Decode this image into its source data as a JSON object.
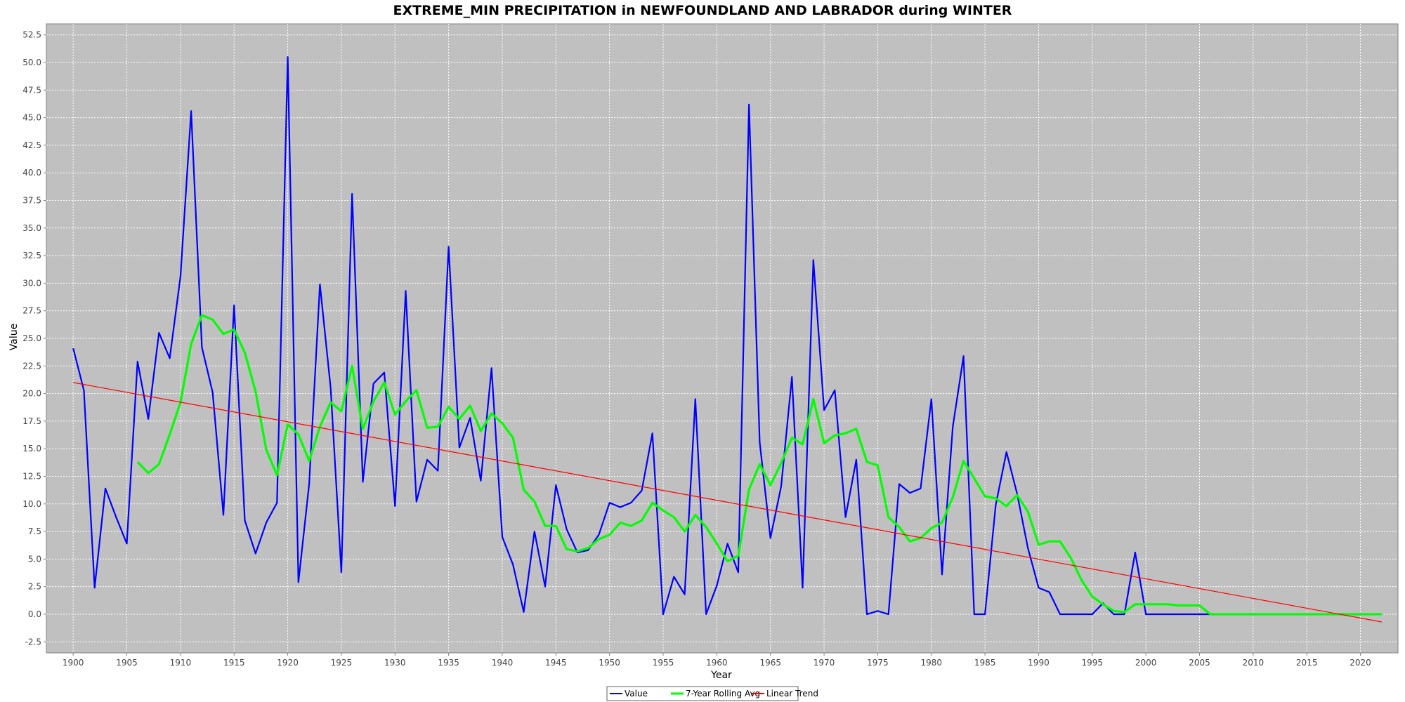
{
  "chart_data": {
    "type": "line",
    "title": "EXTREME_MIN PRECIPITATION in NEWFOUNDLAND AND LABRADOR during WINTER",
    "xlabel": "Year",
    "ylabel": "Value",
    "xlim": [
      1897.5,
      2023.5
    ],
    "ylim": [
      -3.5,
      53.5
    ],
    "x_ticks": [
      1900,
      1905,
      1910,
      1915,
      1920,
      1925,
      1930,
      1935,
      1940,
      1945,
      1950,
      1955,
      1960,
      1965,
      1970,
      1975,
      1980,
      1985,
      1990,
      1995,
      2000,
      2005,
      2010,
      2015,
      2020
    ],
    "y_ticks": [
      -2.5,
      0,
      2.5,
      5,
      7.5,
      10,
      12.5,
      15,
      17.5,
      20,
      22.5,
      25,
      27.5,
      30,
      32.5,
      35,
      37.5,
      40,
      42.5,
      45,
      47.5,
      50,
      52.5
    ],
    "grid": true,
    "legend_position": "bottom",
    "series": [
      {
        "name": "Value",
        "color": "#0000ff",
        "x": [
          1900,
          1901,
          1902,
          1903,
          1904,
          1905,
          1906,
          1907,
          1908,
          1909,
          1910,
          1911,
          1912,
          1913,
          1914,
          1915,
          1916,
          1917,
          1918,
          1919,
          1920,
          1921,
          1922,
          1923,
          1924,
          1925,
          1926,
          1927,
          1928,
          1929,
          1930,
          1931,
          1932,
          1933,
          1934,
          1935,
          1936,
          1937,
          1938,
          1939,
          1940,
          1941,
          1942,
          1943,
          1944,
          1945,
          1946,
          1947,
          1948,
          1949,
          1950,
          1951,
          1952,
          1953,
          1954,
          1955,
          1956,
          1957,
          1958,
          1959,
          1960,
          1961,
          1962,
          1963,
          1964,
          1965,
          1966,
          1967,
          1968,
          1969,
          1970,
          1971,
          1972,
          1973,
          1974,
          1975,
          1976,
          1977,
          1978,
          1979,
          1980,
          1981,
          1982,
          1983,
          1984,
          1985,
          1986,
          1987,
          1988,
          1989,
          1990,
          1991,
          1992,
          1993,
          1994,
          1995,
          1996,
          1997,
          1998,
          1999,
          2000,
          2001,
          2002,
          2003,
          2004,
          2005,
          2006,
          2007,
          2008,
          2009,
          2010,
          2011,
          2012,
          2013,
          2014,
          2015,
          2016,
          2017,
          2018,
          2019,
          2020,
          2021,
          2022
        ],
        "values": [
          24.1,
          20.3,
          2.4,
          11.4,
          8.8,
          6.4,
          22.9,
          17.7,
          25.5,
          23.2,
          30.6,
          45.6,
          24.2,
          20.1,
          9.0,
          28.0,
          8.5,
          5.5,
          8.3,
          10.1,
          50.5,
          2.9,
          11.8,
          29.9,
          20.5,
          3.8,
          38.1,
          12.0,
          20.9,
          21.9,
          9.8,
          29.3,
          10.2,
          14.0,
          13.0,
          33.3,
          15.1,
          17.8,
          12.1,
          22.3,
          7.0,
          4.5,
          0.2,
          7.5,
          2.5,
          11.7,
          7.7,
          5.6,
          5.8,
          7.2,
          10.1,
          9.7,
          10.1,
          11.2,
          16.4,
          0.0,
          3.4,
          1.8,
          19.5,
          0.0,
          2.6,
          6.4,
          3.8,
          46.2,
          15.6,
          6.9,
          11.6,
          21.5,
          2.4,
          32.1,
          18.5,
          20.3,
          8.8,
          14.0,
          0.0,
          0.3,
          0.0,
          11.8,
          11.0,
          11.4,
          19.5,
          3.6,
          17.0,
          23.4,
          0.0,
          0.0,
          9.9,
          14.7,
          10.9,
          6.0,
          2.4,
          2.0,
          0.0,
          0.0,
          0.0,
          0.0,
          1.0,
          0.0,
          0.0,
          5.6,
          0.0,
          0.0,
          0.0,
          0.0,
          0.0,
          0.0,
          0.0,
          0.0,
          0.0,
          0.0,
          0.0,
          0.0,
          0.0,
          0.0,
          0.0,
          0.0,
          0.0,
          0.0,
          0.0,
          0.0,
          0.0,
          0.0,
          0.0
        ]
      },
      {
        "name": "7-Year Rolling Avg",
        "color": "#00ff00",
        "x": [
          1906,
          1907,
          1908,
          1909,
          1910,
          1911,
          1912,
          1913,
          1914,
          1915,
          1916,
          1917,
          1918,
          1919,
          1920,
          1921,
          1922,
          1923,
          1924,
          1925,
          1926,
          1927,
          1928,
          1929,
          1930,
          1931,
          1932,
          1933,
          1934,
          1935,
          1936,
          1937,
          1938,
          1939,
          1940,
          1941,
          1942,
          1943,
          1944,
          1945,
          1946,
          1947,
          1948,
          1949,
          1950,
          1951,
          1952,
          1953,
          1954,
          1955,
          1956,
          1957,
          1958,
          1959,
          1960,
          1961,
          1962,
          1963,
          1964,
          1965,
          1966,
          1967,
          1968,
          1969,
          1970,
          1971,
          1972,
          1973,
          1974,
          1975,
          1976,
          1977,
          1978,
          1979,
          1980,
          1981,
          1982,
          1983,
          1984,
          1985,
          1986,
          1987,
          1988,
          1989,
          1990,
          1991,
          1992,
          1993,
          1994,
          1995,
          1996,
          1997,
          1998,
          1999,
          2000,
          2001,
          2002,
          2003,
          2004,
          2005,
          2006,
          2007,
          2008,
          2009,
          2010,
          2011,
          2012,
          2013,
          2014,
          2015,
          2016,
          2017,
          2018,
          2019,
          2020,
          2021,
          2022
        ],
        "values": [
          13.8,
          12.8,
          13.6,
          16.3,
          19.2,
          24.5,
          27.1,
          26.7,
          25.4,
          25.8,
          23.7,
          20.2,
          14.9,
          12.6,
          17.2,
          16.3,
          13.9,
          17.0,
          19.2,
          18.4,
          22.5,
          16.8,
          19.3,
          21.0,
          18.1,
          19.3,
          20.3,
          16.9,
          17.0,
          18.8,
          17.7,
          18.9,
          16.6,
          18.2,
          17.3,
          16.0,
          11.3,
          10.2,
          8.0,
          8.0,
          5.9,
          5.7,
          6.0,
          6.8,
          7.2,
          8.3,
          8.0,
          8.5,
          10.1,
          9.4,
          8.8,
          7.5,
          9.0,
          7.9,
          6.4,
          4.8,
          5.3,
          11.3,
          13.6,
          11.7,
          13.7,
          16.0,
          15.4,
          19.5,
          15.5,
          16.2,
          16.4,
          16.8,
          13.8,
          13.5,
          8.8,
          7.9,
          6.6,
          6.9,
          7.8,
          8.3,
          10.6,
          13.9,
          12.3,
          10.7,
          10.5,
          9.8,
          10.8,
          9.3,
          6.3,
          6.6,
          6.6,
          5.1,
          3.1,
          1.6,
          0.9,
          0.3,
          0.2,
          0.9,
          0.9,
          0.9,
          0.9,
          0.8,
          0.8,
          0.8,
          0.0,
          0.0,
          0.0,
          0.0,
          0.0,
          0.0,
          0.0,
          0.0,
          0.0,
          0.0,
          0.0,
          0.0,
          0.0,
          0.0,
          0.0,
          0.0,
          0.0
        ]
      },
      {
        "name": "Linear Trend",
        "color": "#ff0000",
        "x": [
          1900,
          2022
        ],
        "values": [
          21.0,
          -0.7
        ]
      }
    ]
  }
}
